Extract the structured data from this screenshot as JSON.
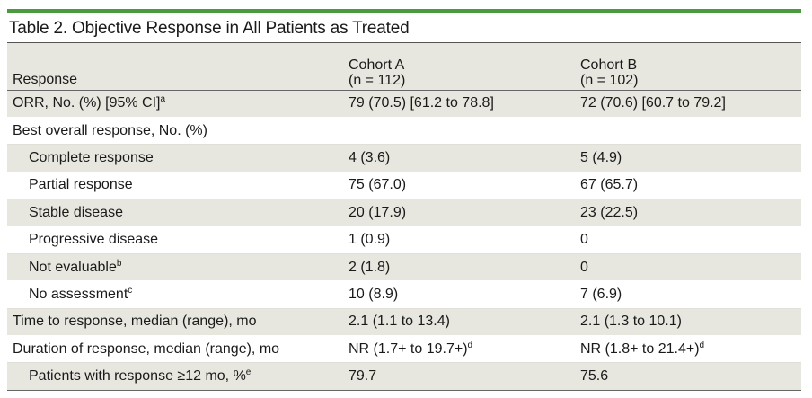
{
  "title": "Table 2. Objective Response in All Patients as Treated",
  "colors": {
    "accent": "#4a9a3f",
    "shade": "#e7e7df"
  },
  "header": {
    "response": "Response",
    "cohort_a_name": "Cohort A",
    "cohort_a_n": "(n = 112)",
    "cohort_b_name": "Cohort B",
    "cohort_b_n": "(n = 102)"
  },
  "rows": [
    {
      "label": "ORR, No. (%) [95% CI]",
      "sup": "a",
      "a": "79 (70.5) [61.2 to 78.8]",
      "a_sup": "",
      "b": "72 (70.6) [60.7 to 79.2]",
      "b_sup": ""
    },
    {
      "label": "Best overall response, No. (%)",
      "sup": "",
      "a": "",
      "a_sup": "",
      "b": "",
      "b_sup": ""
    },
    {
      "label": "Complete response",
      "sup": "",
      "a": "4 (3.6)",
      "a_sup": "",
      "b": "5 (4.9)",
      "b_sup": ""
    },
    {
      "label": "Partial response",
      "sup": "",
      "a": "75 (67.0)",
      "a_sup": "",
      "b": "67 (65.7)",
      "b_sup": ""
    },
    {
      "label": "Stable disease",
      "sup": "",
      "a": "20 (17.9)",
      "a_sup": "",
      "b": "23 (22.5)",
      "b_sup": ""
    },
    {
      "label": "Progressive disease",
      "sup": "",
      "a": "1 (0.9)",
      "a_sup": "",
      "b": "0",
      "b_sup": ""
    },
    {
      "label": "Not evaluable",
      "sup": "b",
      "a": "2 (1.8)",
      "a_sup": "",
      "b": "0",
      "b_sup": ""
    },
    {
      "label": "No assessment",
      "sup": "c",
      "a": "10 (8.9)",
      "a_sup": "",
      "b": "7 (6.9)",
      "b_sup": ""
    },
    {
      "label": "Time to response, median (range), mo",
      "sup": "",
      "a": "2.1 (1.1 to 13.4)",
      "a_sup": "",
      "b": "2.1 (1.3 to 10.1)",
      "b_sup": ""
    },
    {
      "label": "Duration of response, median (range), mo",
      "sup": "",
      "a": "NR (1.7+ to 19.7+)",
      "a_sup": "d",
      "b": "NR (1.8+ to 21.4+)",
      "b_sup": "d"
    },
    {
      "label": "Patients with response ≥12 mo, %",
      "sup": "e",
      "a": "79.7",
      "a_sup": "",
      "b": "75.6",
      "b_sup": ""
    }
  ]
}
